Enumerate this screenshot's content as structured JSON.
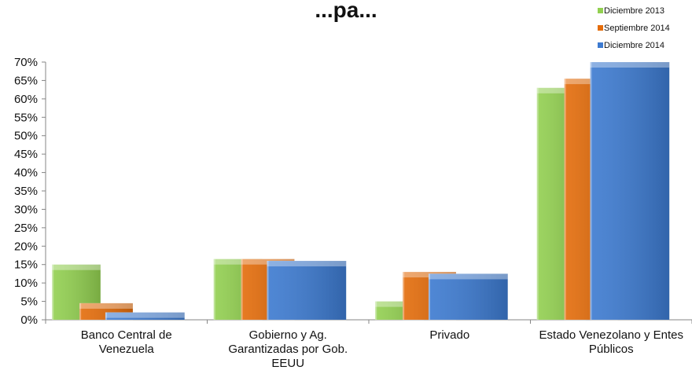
{
  "chart_data": {
    "type": "bar",
    "title": "...pa...",
    "categories": [
      [
        "Banco Central de",
        "Venezuela"
      ],
      [
        "Gobierno y Ag.",
        "Garantizadas por Gob.",
        "EEUU"
      ],
      [
        "Privado"
      ],
      [
        "Estado Venezolano y Entes",
        "Públicos"
      ]
    ],
    "series": [
      {
        "name": "Diciembre 2013",
        "color": "#92D050",
        "values": [
          15,
          16.5,
          5,
          63
        ]
      },
      {
        "name": "Septiembre 2014",
        "color": "#E46C0A",
        "values": [
          4.5,
          16.5,
          13,
          65.5
        ]
      },
      {
        "name": "Diciembre 2014",
        "color": "#3C7AD0",
        "values": [
          2,
          16,
          12.5,
          70
        ]
      }
    ],
    "ylim": [
      0,
      70
    ],
    "yticks": [
      "0%",
      "5%",
      "10%",
      "15%",
      "20%",
      "25%",
      "30%",
      "35%",
      "40%",
      "45%",
      "50%",
      "55%",
      "60%",
      "65%",
      "70%"
    ],
    "legend_position": "top-right",
    "grid": false
  }
}
